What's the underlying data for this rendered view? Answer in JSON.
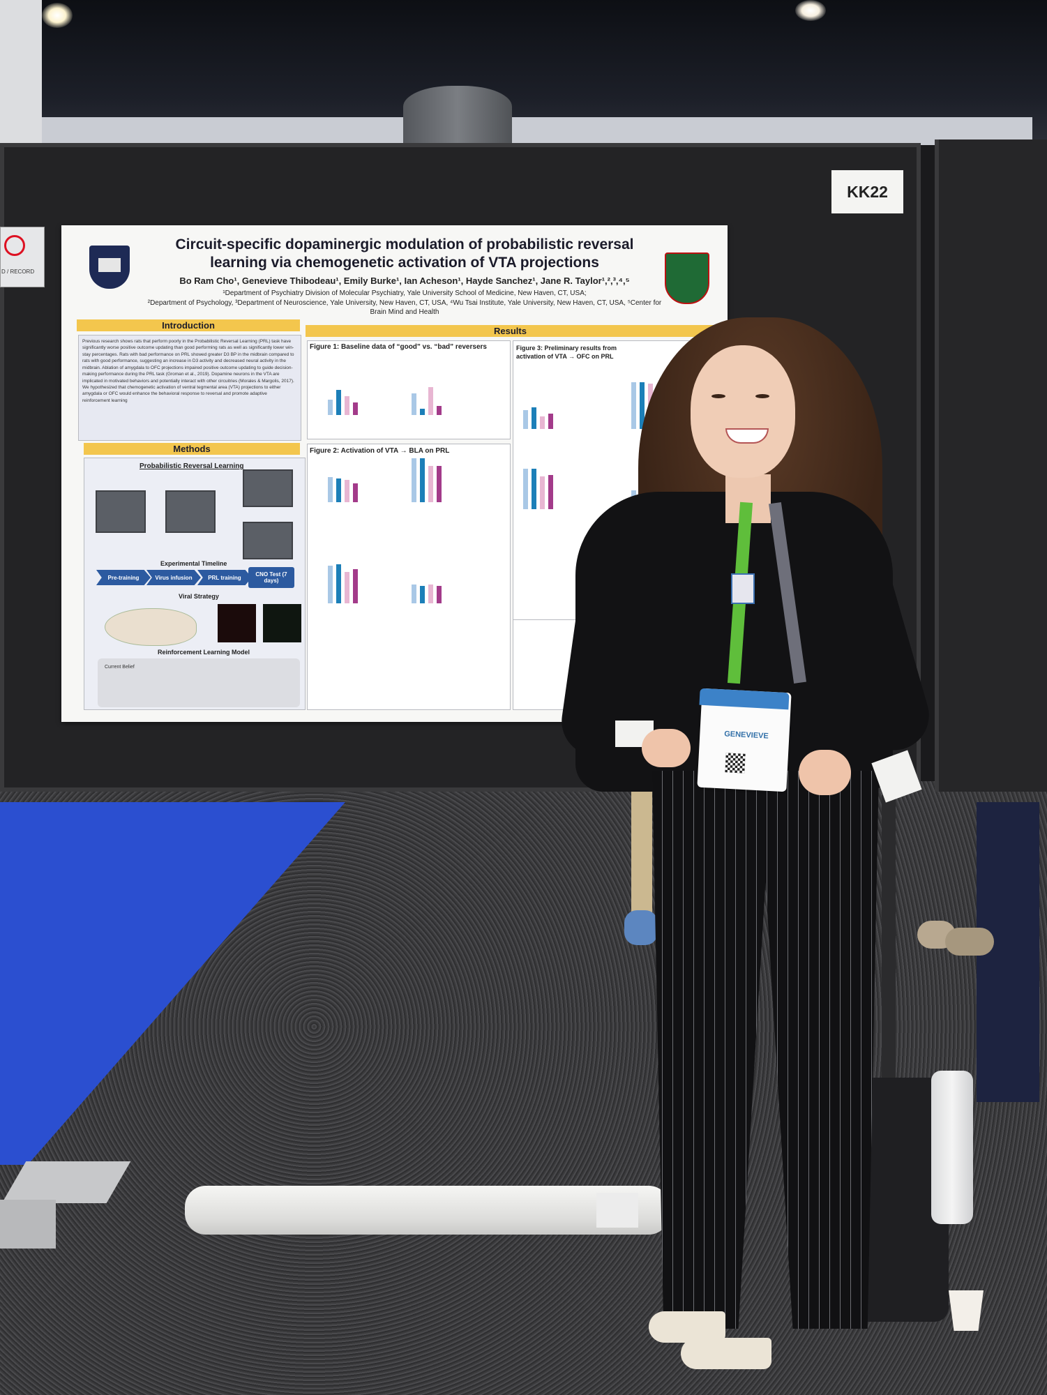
{
  "scene": {
    "booth_label": "KK22",
    "sign_text": "D / RECORD"
  },
  "poster": {
    "title": "Circuit-specific dopaminergic modulation of probabilistic reversal learning via chemogenetic activation of VTA projections",
    "authors": "Bo Ram Cho¹, Genevieve Thibodeau¹, Emily Burke¹, Ian Acheson¹, Hayde Sanchez¹, Jane R. Taylor¹,²,³,⁴,⁵",
    "affiliation_1": "¹Department of Psychiatry Division of Molecular Psychiatry, Yale University School of Medicine, New Haven, CT, USA;",
    "affiliation_2": "²Department of Psychology, ³Department of Neuroscience, Yale University, New Haven, CT, USA, ⁴Wu Tsai Institute, Yale University, New Haven, CT, USA, ⁵Center for Brain Mind and Health",
    "sections": {
      "introduction": "Introduction",
      "results": "Results",
      "methods": "Methods"
    },
    "intro_text": "Previous research shows rats that perform poorly in the Probabilistic Reversal Learning (PRL) task have significantly worse positive outcome updating than good performing rats as well as significantly lower win-stay percentages. Rats with bad performance on PRL showed greater D3 BP in the midbrain compared to rats with good performance, suggesting an increase in D3 activity and decreased neural activity in the midbrain. Ablation of amygdala to OFC projections impaired positive outcome updating to guide decision-making performance during the PRL task (Groman et al., 2019). Dopamine neurons in the VTA are implicated in motivated behaviors and potentially interact with other circuitries (Morales & Margolis, 2017). We hypothesized that chemogenetic activation of ventral tegmental area (VTA) projections to either amygdala or OFC would enhance the behavioral response to reversal and promote adaptive reinforcement learning",
    "methods": {
      "prl_label": "Probabilistic Reversal Learning",
      "timeline_label": "Experimental Timeline",
      "steps": [
        "Pre-training",
        "Virus infusion",
        "PRL training",
        "CNO Test (7 days)"
      ],
      "viral_label": "Viral Strategy",
      "rl_label": "Reinforcement Learning Model",
      "rl_text": "Current Belief"
    },
    "figures": {
      "fig1_title": "Figure 1: Baseline data of “good” vs. “bad” reversers",
      "fig2_title": "Figure 2: Activation of VTA → BLA on PRL",
      "fig3_title": "Figure 3: Preliminary results from activation of VTA → OFC on PRL"
    }
  },
  "badge": {
    "name": "GENEVIEVE"
  },
  "colors": {
    "poster_banner": "#f3c64d",
    "bar_blue_light": "#a9c8e6",
    "bar_blue": "#1c7fb8",
    "bar_pink_light": "#e8b6d2",
    "bar_magenta": "#a33b8a",
    "carpet": "#2b4fd0"
  }
}
